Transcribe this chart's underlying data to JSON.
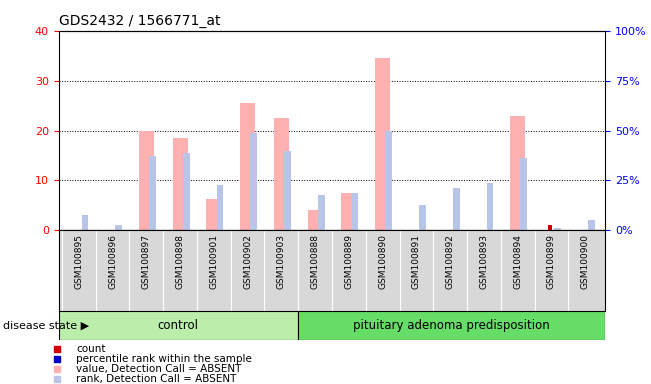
{
  "title": "GDS2432 / 1566771_at",
  "samples": [
    "GSM100895",
    "GSM100896",
    "GSM100897",
    "GSM100898",
    "GSM100901",
    "GSM100902",
    "GSM100903",
    "GSM100888",
    "GSM100889",
    "GSM100890",
    "GSM100891",
    "GSM100892",
    "GSM100893",
    "GSM100894",
    "GSM100899",
    "GSM100900"
  ],
  "value_absent": [
    0,
    0,
    20.0,
    18.5,
    6.2,
    25.5,
    22.5,
    4.0,
    7.5,
    34.5,
    0,
    0,
    0,
    23.0,
    0,
    0
  ],
  "rank_absent": [
    3.0,
    1.0,
    15.0,
    15.5,
    9.0,
    19.5,
    16.0,
    7.0,
    7.5,
    20.0,
    5.0,
    8.5,
    9.5,
    14.5,
    0.5,
    2.0
  ],
  "count": [
    0,
    0,
    0,
    0,
    0,
    0,
    0,
    0,
    0,
    0,
    0,
    0,
    0,
    0,
    1.0,
    0
  ],
  "percentile_rank": [
    0,
    0,
    0,
    0,
    0,
    0,
    0,
    0,
    0,
    0,
    0,
    0,
    0,
    0,
    0,
    0
  ],
  "n_control": 7,
  "n_disease": 9,
  "ylim_left": [
    0,
    40
  ],
  "ylim_right": [
    0,
    100
  ],
  "yticks_left": [
    0,
    10,
    20,
    30,
    40
  ],
  "yticks_right": [
    0,
    25,
    50,
    75,
    100
  ],
  "color_value_absent": "#FFB0B0",
  "color_rank_absent": "#B8C4E8",
  "color_count": "#CC0000",
  "color_percentile": "#0000CC",
  "bg_plot": "#FFFFFF",
  "bg_xtick": "#D8D8D8",
  "bg_control": "#BBEEAA",
  "bg_disease": "#66DD66",
  "label_count": "count",
  "label_percentile": "percentile rank within the sample",
  "label_value_absent": "value, Detection Call = ABSENT",
  "label_rank_absent": "rank, Detection Call = ABSENT",
  "disease_state_label": "disease state",
  "control_label": "control",
  "disease_label": "pituitary adenoma predisposition"
}
